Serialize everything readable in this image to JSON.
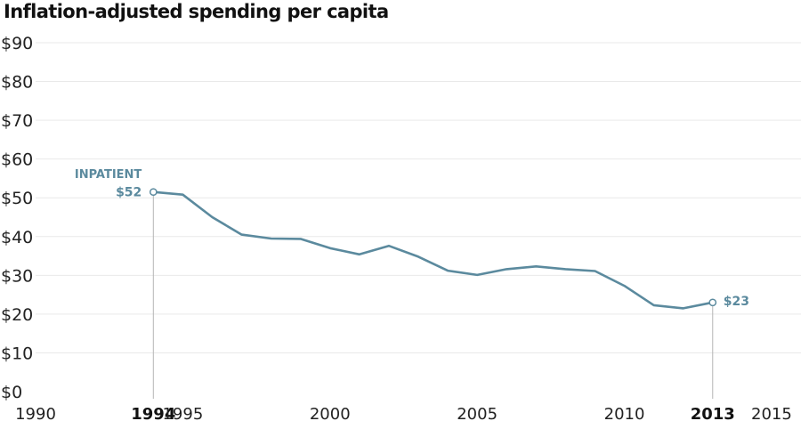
{
  "chart_data": {
    "type": "line",
    "title": "Inflation-adjusted spending per capita",
    "xlabel": "",
    "ylabel": "",
    "xlim": [
      1990,
      2016
    ],
    "ylim": [
      0,
      90
    ],
    "y_ticks": [
      0,
      10,
      20,
      30,
      40,
      50,
      60,
      70,
      80,
      90
    ],
    "y_tick_labels": [
      "$0",
      "$10",
      "$20",
      "$30",
      "$40",
      "$50",
      "$60",
      "$70",
      "$80",
      "$90"
    ],
    "x_tick_labels": [
      {
        "value": 1990,
        "label": "1990",
        "bold": false
      },
      {
        "value": 1994,
        "label": "1994",
        "bold": true
      },
      {
        "value": 1995,
        "label": "1995",
        "bold": false
      },
      {
        "value": 2000,
        "label": "2000",
        "bold": false
      },
      {
        "value": 2005,
        "label": "2005",
        "bold": false
      },
      {
        "value": 2010,
        "label": "2010",
        "bold": false
      },
      {
        "value": 2013,
        "label": "2013",
        "bold": true
      },
      {
        "value": 2015,
        "label": "2015",
        "bold": false
      }
    ],
    "grid": true,
    "series": [
      {
        "name": "INPATIENT",
        "color": "#5b8a9e",
        "x": [
          1994,
          1995,
          1996,
          1997,
          1998,
          1999,
          2000,
          2001,
          2002,
          2003,
          2004,
          2005,
          2006,
          2007,
          2008,
          2009,
          2010,
          2011,
          2012,
          2013
        ],
        "values": [
          51.5,
          50.8,
          45,
          40.5,
          39.5,
          39.4,
          37,
          35.4,
          37.6,
          34.8,
          31.2,
          30.1,
          31.6,
          32.3,
          31.6,
          31.1,
          27.3,
          22.3,
          21.5,
          23
        ]
      }
    ],
    "annotations": [
      {
        "text": "INPATIENT",
        "x": 1994,
        "position": "above-left"
      },
      {
        "text": "$52",
        "x": 1994,
        "y": 51.5,
        "position": "left"
      },
      {
        "text": "$23",
        "x": 2013,
        "y": 23,
        "position": "right"
      }
    ],
    "reference_lines": [
      1994,
      2013
    ]
  }
}
